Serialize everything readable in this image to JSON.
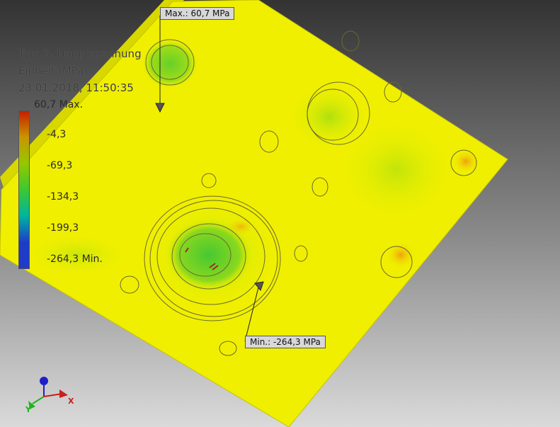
{
  "legend": {
    "type_line": "Typ: 3. Hauptspannung",
    "unit_line": "Einheit: MPa",
    "date_line": "23.01.2018, 11:50:35",
    "ticks": [
      "60,7 Max.",
      "-4,3",
      "-69,3",
      "-134,3",
      "-199,3",
      "-264,3 Min."
    ],
    "band_colors": [
      "#c81e00",
      "#c89600",
      "#96c800",
      "#3cc832",
      "#00b4a0",
      "#1e3cc8"
    ]
  },
  "callouts": {
    "max_label": "Max.: 60,7 MPa",
    "min_label": "Min.: -264,3 MPa"
  },
  "axes": {
    "x_label": "X",
    "y_label": "Y",
    "x_color": "#c81e1e",
    "y_color": "#1eb41e",
    "z_color": "#1e1ec8"
  },
  "colors": {
    "part_yellow": "#f0f000",
    "stress_green": "#5ad22d",
    "background_top": "#3a3a3a",
    "background_bottom": "#d2d2d2"
  }
}
